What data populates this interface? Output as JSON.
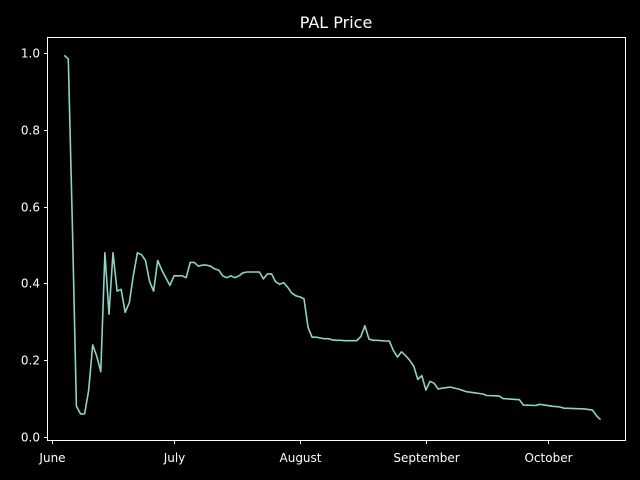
{
  "chart_data": {
    "type": "line",
    "title": "PAL Price",
    "xlabel": "",
    "ylabel": "",
    "x_axis": {
      "kind": "date",
      "range": [
        "2021-05-31",
        "2021-10-20"
      ],
      "ticks": [
        {
          "date": "2021-06-01",
          "label": "June"
        },
        {
          "date": "2021-07-01",
          "label": "July"
        },
        {
          "date": "2021-08-01",
          "label": "August"
        },
        {
          "date": "2021-09-01",
          "label": "September"
        },
        {
          "date": "2021-10-01",
          "label": "October"
        }
      ]
    },
    "y_axis": {
      "range": [
        -0.008,
        1.04
      ],
      "ticks": [
        {
          "value": 0.0,
          "label": "0.0"
        },
        {
          "value": 0.2,
          "label": "0.2"
        },
        {
          "value": 0.4,
          "label": "0.4"
        },
        {
          "value": 0.6,
          "label": "0.6"
        },
        {
          "value": 0.8,
          "label": "0.8"
        },
        {
          "value": 1.0,
          "label": "1.0"
        }
      ]
    },
    "grid": false,
    "legend": "none",
    "series": [
      {
        "color": "#8dd3c7",
        "points": [
          [
            "2021-06-04",
            0.995
          ],
          [
            "2021-06-05",
            0.985
          ],
          [
            "2021-06-06",
            0.55
          ],
          [
            "2021-06-07",
            0.08
          ],
          [
            "2021-06-08",
            0.06
          ],
          [
            "2021-06-09",
            0.06
          ],
          [
            "2021-06-10",
            0.12
          ],
          [
            "2021-06-11",
            0.24
          ],
          [
            "2021-06-12",
            0.21
          ],
          [
            "2021-06-13",
            0.17
          ],
          [
            "2021-06-14",
            0.48
          ],
          [
            "2021-06-15",
            0.32
          ],
          [
            "2021-06-16",
            0.48
          ],
          [
            "2021-06-17",
            0.38
          ],
          [
            "2021-06-18",
            0.385
          ],
          [
            "2021-06-19",
            0.325
          ],
          [
            "2021-06-20",
            0.35
          ],
          [
            "2021-06-21",
            0.42
          ],
          [
            "2021-06-22",
            0.48
          ],
          [
            "2021-06-23",
            0.475
          ],
          [
            "2021-06-24",
            0.46
          ],
          [
            "2021-06-25",
            0.405
          ],
          [
            "2021-06-26",
            0.38
          ],
          [
            "2021-06-27",
            0.46
          ],
          [
            "2021-06-28",
            0.435
          ],
          [
            "2021-06-29",
            0.415
          ],
          [
            "2021-06-30",
            0.395
          ],
          [
            "2021-07-01",
            0.42
          ],
          [
            "2021-07-02",
            0.42
          ],
          [
            "2021-07-03",
            0.42
          ],
          [
            "2021-07-04",
            0.415
          ],
          [
            "2021-07-05",
            0.455
          ],
          [
            "2021-07-06",
            0.455
          ],
          [
            "2021-07-07",
            0.445
          ],
          [
            "2021-07-08",
            0.448
          ],
          [
            "2021-07-09",
            0.448
          ],
          [
            "2021-07-10",
            0.445
          ],
          [
            "2021-07-11",
            0.438
          ],
          [
            "2021-07-12",
            0.435
          ],
          [
            "2021-07-13",
            0.42
          ],
          [
            "2021-07-14",
            0.415
          ],
          [
            "2021-07-15",
            0.42
          ],
          [
            "2021-07-16",
            0.415
          ],
          [
            "2021-07-17",
            0.42
          ],
          [
            "2021-07-18",
            0.428
          ],
          [
            "2021-07-19",
            0.43
          ],
          [
            "2021-07-20",
            0.43
          ],
          [
            "2021-07-21",
            0.43
          ],
          [
            "2021-07-22",
            0.43
          ],
          [
            "2021-07-23",
            0.412
          ],
          [
            "2021-07-24",
            0.425
          ],
          [
            "2021-07-25",
            0.425
          ],
          [
            "2021-07-26",
            0.405
          ],
          [
            "2021-07-27",
            0.398
          ],
          [
            "2021-07-28",
            0.402
          ],
          [
            "2021-07-29",
            0.39
          ],
          [
            "2021-07-30",
            0.375
          ],
          [
            "2021-07-31",
            0.368
          ],
          [
            "2021-08-01",
            0.365
          ],
          [
            "2021-08-02",
            0.36
          ],
          [
            "2021-08-03",
            0.285
          ],
          [
            "2021-08-04",
            0.26
          ],
          [
            "2021-08-05",
            0.26
          ],
          [
            "2021-08-06",
            0.258
          ],
          [
            "2021-08-07",
            0.256
          ],
          [
            "2021-08-08",
            0.256
          ],
          [
            "2021-08-09",
            0.253
          ],
          [
            "2021-08-10",
            0.252
          ],
          [
            "2021-08-11",
            0.252
          ],
          [
            "2021-08-12",
            0.251
          ],
          [
            "2021-08-13",
            0.251
          ],
          [
            "2021-08-14",
            0.251
          ],
          [
            "2021-08-15",
            0.251
          ],
          [
            "2021-08-16",
            0.262
          ],
          [
            "2021-08-17",
            0.29
          ],
          [
            "2021-08-18",
            0.255
          ],
          [
            "2021-08-19",
            0.252
          ],
          [
            "2021-08-20",
            0.252
          ],
          [
            "2021-08-21",
            0.251
          ],
          [
            "2021-08-22",
            0.25
          ],
          [
            "2021-08-23",
            0.25
          ],
          [
            "2021-08-24",
            0.225
          ],
          [
            "2021-08-25",
            0.208
          ],
          [
            "2021-08-26",
            0.222
          ],
          [
            "2021-08-27",
            0.212
          ],
          [
            "2021-08-28",
            0.2
          ],
          [
            "2021-08-29",
            0.185
          ],
          [
            "2021-08-30",
            0.15
          ],
          [
            "2021-08-31",
            0.16
          ],
          [
            "2021-09-01",
            0.122
          ],
          [
            "2021-09-02",
            0.145
          ],
          [
            "2021-09-03",
            0.14
          ],
          [
            "2021-09-04",
            0.125
          ],
          [
            "2021-09-05",
            0.127
          ],
          [
            "2021-09-07",
            0.13
          ],
          [
            "2021-09-09",
            0.125
          ],
          [
            "2021-09-11",
            0.118
          ],
          [
            "2021-09-13",
            0.115
          ],
          [
            "2021-09-15",
            0.112
          ],
          [
            "2021-09-16",
            0.108
          ],
          [
            "2021-09-19",
            0.107
          ],
          [
            "2021-09-20",
            0.1
          ],
          [
            "2021-09-24",
            0.097
          ],
          [
            "2021-09-25",
            0.083
          ],
          [
            "2021-09-28",
            0.082
          ],
          [
            "2021-09-29",
            0.085
          ],
          [
            "2021-10-02",
            0.08
          ],
          [
            "2021-10-04",
            0.078
          ],
          [
            "2021-10-05",
            0.075
          ],
          [
            "2021-10-10",
            0.073
          ],
          [
            "2021-10-12",
            0.07
          ],
          [
            "2021-10-13",
            0.055
          ],
          [
            "2021-10-14",
            0.045
          ]
        ]
      }
    ]
  }
}
